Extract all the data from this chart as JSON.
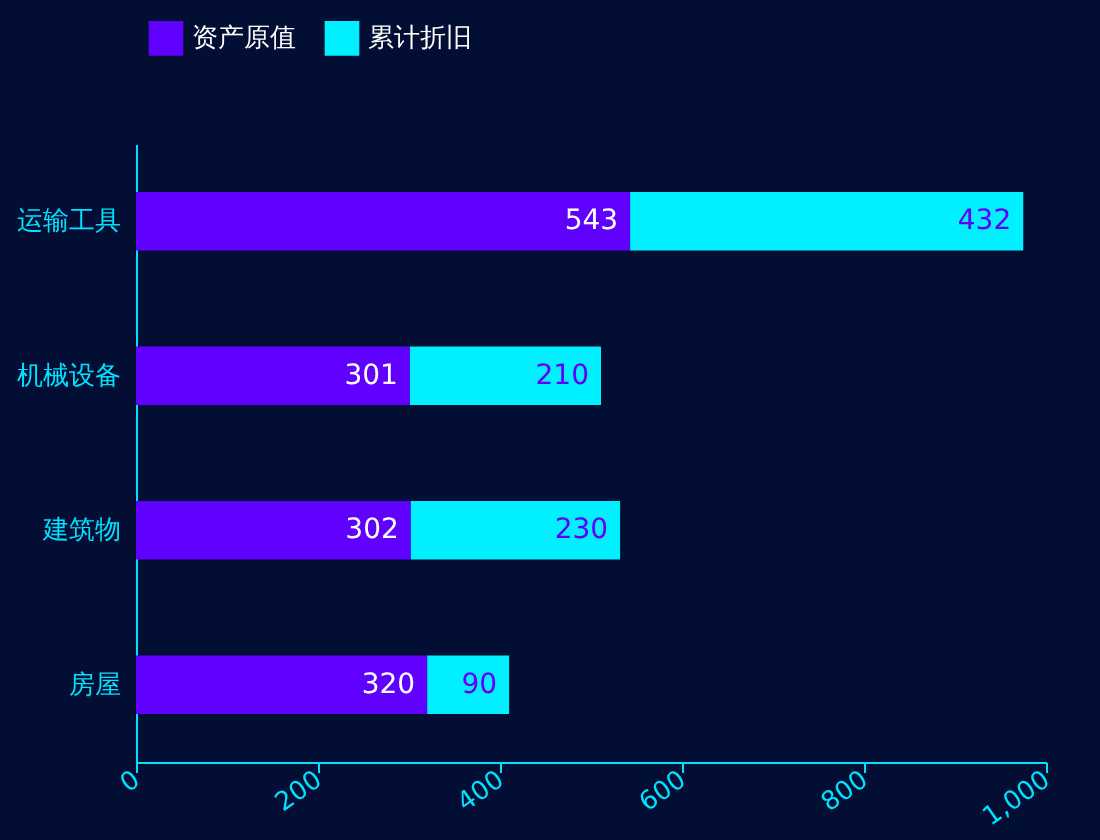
{
  "chart_data": {
    "type": "bar",
    "orientation": "horizontal",
    "stacked": true,
    "categories": [
      "运输工具",
      "机械设备",
      "建筑物",
      "房屋"
    ],
    "series": [
      {
        "name": "资产原值",
        "color": "#6000ff",
        "values": [
          543,
          301,
          302,
          320
        ]
      },
      {
        "name": "累计折旧",
        "color": "#00f0ff",
        "values": [
          432,
          210,
          230,
          90
        ]
      }
    ],
    "xlim": [
      0,
      1000
    ],
    "xticks": [
      0,
      200,
      400,
      600,
      800,
      {
        "value": 1000,
        "label": "1,000"
      }
    ],
    "data_labels": true,
    "legend": "top",
    "grid": false
  }
}
